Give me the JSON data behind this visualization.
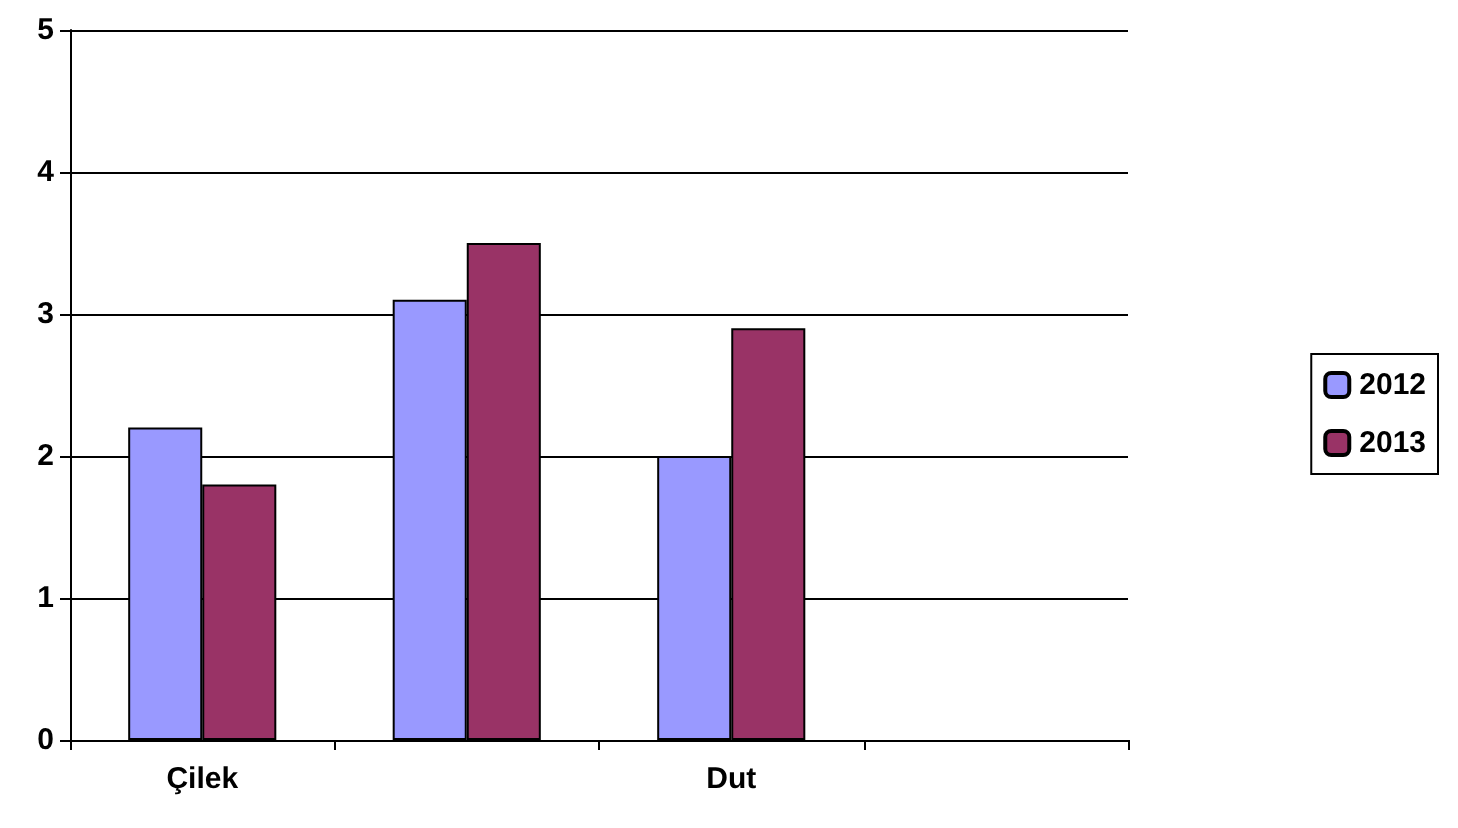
{
  "chart_data": {
    "type": "bar",
    "categories": [
      "Çilek",
      null,
      "Dut",
      null
    ],
    "series": [
      {
        "name": "2012",
        "color": "#9999ff",
        "values": [
          2.2,
          3.1,
          2.0,
          null
        ]
      },
      {
        "name": "2013",
        "color": "#993366",
        "values": [
          1.8,
          3.5,
          2.9,
          null
        ]
      }
    ],
    "ylim": [
      0,
      5
    ],
    "yticks": [
      0,
      1,
      2,
      3,
      4,
      5
    ],
    "grid": "y",
    "legend": "right"
  }
}
